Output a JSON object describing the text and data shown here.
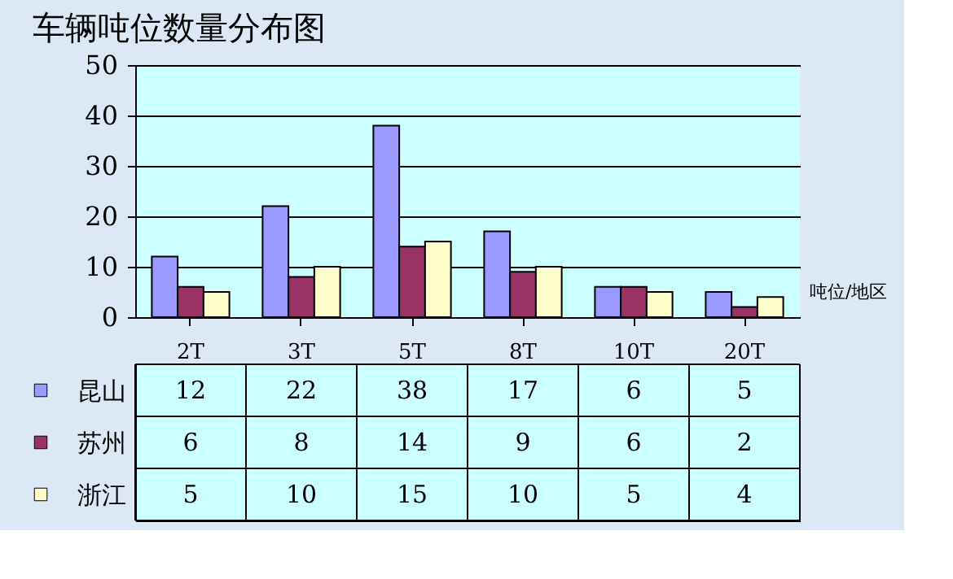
{
  "chart_data": {
    "type": "bar",
    "title": "车辆吨位数量分布图",
    "xlabel": "吨位/地区",
    "categories": [
      "2T",
      "3T",
      "5T",
      "8T",
      "10T",
      "20T"
    ],
    "series": [
      {
        "name": "昆山",
        "color": "#9999ff",
        "values": [
          12,
          22,
          38,
          17,
          6,
          5
        ]
      },
      {
        "name": "苏州",
        "color": "#993366",
        "values": [
          6,
          8,
          14,
          9,
          6,
          2
        ]
      },
      {
        "name": "浙江",
        "color": "#ffffcc",
        "values": [
          5,
          10,
          15,
          10,
          5,
          4
        ]
      }
    ],
    "ylim": [
      0,
      50
    ],
    "yticks": [
      0,
      10,
      20,
      30,
      40,
      50
    ],
    "grid": "y",
    "legend": "bottom",
    "data_labels": true
  }
}
